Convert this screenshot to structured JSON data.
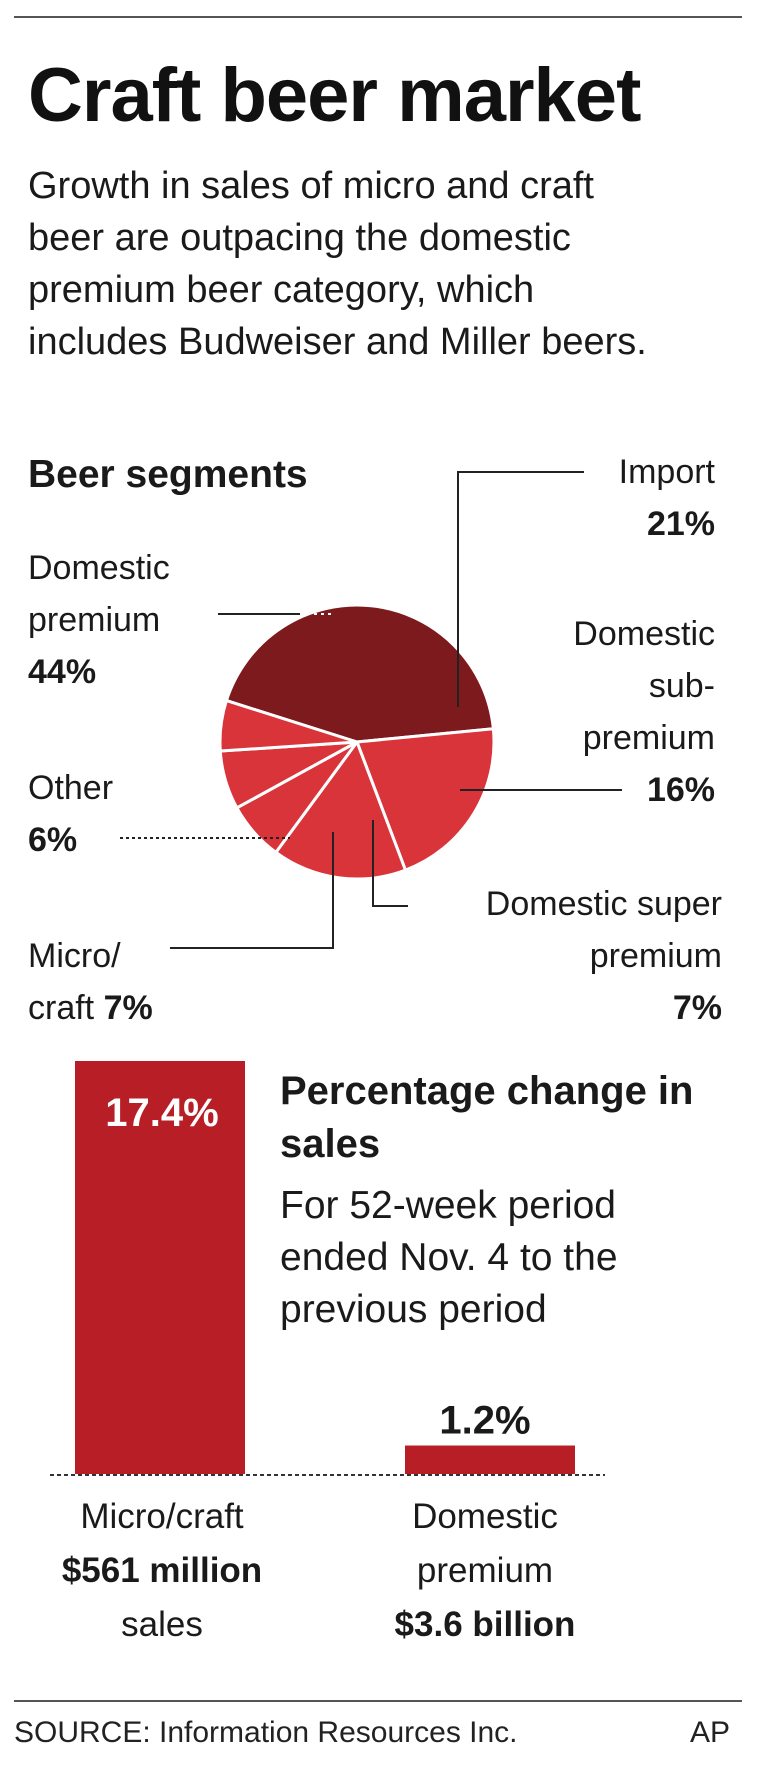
{
  "title": "Craft beer market",
  "subtitle": "Growth in sales of micro and craft beer are outpacing the domestic premium beer category, which includes Budweiser and Miller beers.",
  "source": "SOURCE: Information Resources Inc.",
  "credit": "AP",
  "colors": {
    "dark_red": "#7d1a1d",
    "red": "#d9343a",
    "bar_red": "#b81e25"
  },
  "chart_data": [
    {
      "type": "pie",
      "title": "Beer segments",
      "slices": [
        {
          "name": "Domestic premium",
          "value": 44,
          "value_label": "44%"
        },
        {
          "name": "Import",
          "value": 21,
          "value_label": "21%"
        },
        {
          "name": "Domestic sub-premium",
          "value": 16,
          "value_label": "16%"
        },
        {
          "name": "Domestic super premium",
          "value": 7,
          "value_label": "7%"
        },
        {
          "name": "Micro/craft",
          "value": 7,
          "value_label": "7%"
        },
        {
          "name": "Other",
          "value": 6,
          "value_label": "6%"
        }
      ],
      "labels": {
        "domestic_premium": {
          "line1": "Domestic",
          "line2": "premium",
          "pct": "44%"
        },
        "import": {
          "line1": "Import",
          "pct": "21%"
        },
        "sub_premium": {
          "line1": "Domestic",
          "line2": "sub-",
          "line3": "premium",
          "pct": "16%"
        },
        "super_premium": {
          "line1": "Domestic super",
          "line2": "premium",
          "pct": "7%"
        },
        "other": {
          "line1": "Other",
          "pct": "6%"
        },
        "micro": {
          "line1": "Micro/",
          "line2": "craft",
          "pct": "7%"
        }
      }
    },
    {
      "type": "bar",
      "title": "Percentage change in sales",
      "subtitle": "For 52-week period ended Nov. 4 to the previous period",
      "categories": [
        "Micro/craft",
        "Domestic premium"
      ],
      "values": [
        17.4,
        1.2
      ],
      "value_labels": [
        "17.4%",
        "1.2%"
      ],
      "ylim": [
        0,
        17.4
      ],
      "category_labels": [
        {
          "line1": "Micro/craft",
          "amount": "$561 million",
          "line3": "sales"
        },
        {
          "line1": "Domestic",
          "line2": "premium",
          "amount": "$3.6 billion"
        }
      ]
    }
  ]
}
